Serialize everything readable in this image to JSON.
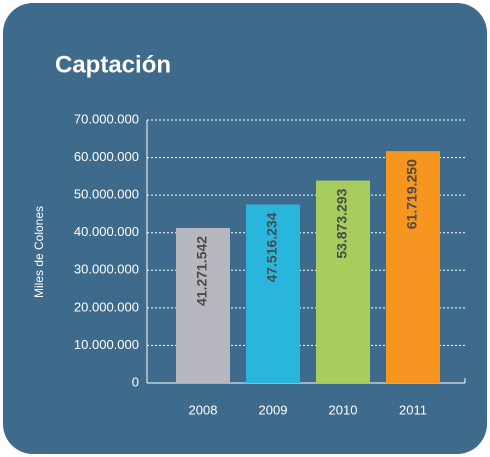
{
  "chart_data": {
    "type": "bar",
    "title": "Captación",
    "y_label": "Miles de Colones",
    "categories": [
      "2008",
      "2009",
      "2010",
      "2011"
    ],
    "values": [
      41271542,
      47516234,
      53873293,
      61719250
    ],
    "value_labels": [
      "41.271.542",
      "47.516.234",
      "53.873.293",
      "61.719.250"
    ],
    "colors": [
      "#b7b8bf",
      "#2ab6dc",
      "#a6cd5e",
      "#f6951f"
    ],
    "ylim": [
      0,
      70000000
    ],
    "yticks": [
      0,
      {
        "value": 10000000,
        "label": "10.000.000"
      },
      {
        "value": 20000000,
        "label": "20.000.000"
      },
      {
        "value": 30000000,
        "label": "30.000.000"
      },
      {
        "value": 40000000,
        "label": "40.000.000"
      },
      {
        "value": 50000000,
        "label": "50.000.000"
      },
      {
        "value": 60000000,
        "label": "60.000.000"
      },
      {
        "value": 70000000,
        "label": "70.000.000"
      }
    ],
    "grid": true
  }
}
